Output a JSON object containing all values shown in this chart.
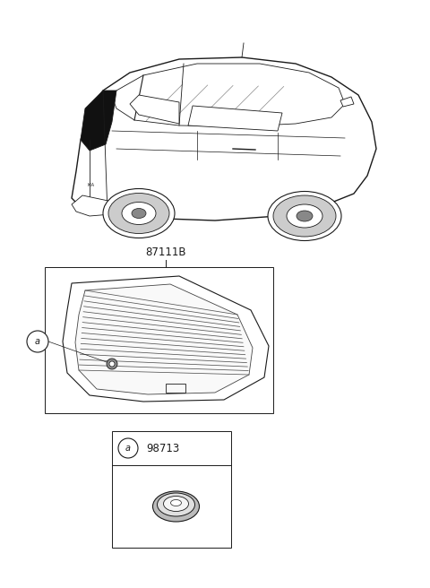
{
  "bg_color": "#ffffff",
  "line_color": "#1a1a1a",
  "part_number_main": "87111B",
  "part_number_sub": "98713",
  "callout_letter": "a",
  "figsize": [
    4.8,
    6.56
  ],
  "dpi": 100
}
